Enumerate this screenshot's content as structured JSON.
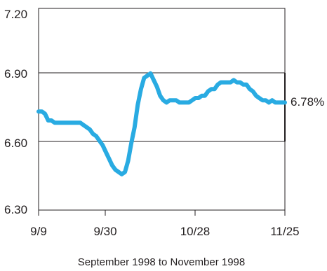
{
  "chart_data": {
    "type": "line",
    "title": "",
    "xlabel": "September 1998 to November 1998",
    "ylabel": "",
    "ylim": [
      6.3,
      7.2
    ],
    "y_ticks": [
      "7.20",
      "6.90",
      "6.60",
      "6.30"
    ],
    "y_tick_values": [
      7.2,
      6.9,
      6.6,
      6.3
    ],
    "x_ticks": [
      "9/9",
      "9/30",
      "10/28",
      "11/25"
    ],
    "x_tick_days": [
      0,
      21,
      49,
      77
    ],
    "grid": "horizontal lines at 6.60 and 6.90",
    "end_value_label": "6.78%",
    "line_color": "#29abe2",
    "series": [
      {
        "x_days": [
          0,
          1,
          2,
          3,
          4,
          5,
          6,
          7,
          8,
          9,
          10,
          11,
          12,
          13,
          14,
          15,
          16,
          17,
          18,
          19,
          20,
          21,
          22,
          23,
          24,
          25,
          26,
          27,
          28,
          29,
          30,
          31,
          32,
          33,
          34,
          35,
          36,
          37,
          38,
          39,
          40,
          41,
          42,
          43,
          44,
          45,
          46,
          47,
          48,
          49,
          50,
          51,
          52,
          53,
          54,
          55,
          56,
          57,
          58,
          59,
          60,
          61,
          62,
          63,
          64,
          65,
          66,
          67,
          68,
          69,
          70,
          71,
          72,
          73,
          74,
          75,
          76,
          77
        ],
        "values": [
          6.74,
          6.74,
          6.73,
          6.7,
          6.7,
          6.69,
          6.69,
          6.69,
          6.69,
          6.69,
          6.69,
          6.69,
          6.69,
          6.69,
          6.68,
          6.67,
          6.66,
          6.64,
          6.63,
          6.61,
          6.59,
          6.56,
          6.53,
          6.5,
          6.48,
          6.47,
          6.46,
          6.47,
          6.52,
          6.6,
          6.67,
          6.77,
          6.84,
          6.89,
          6.9,
          6.91,
          6.88,
          6.85,
          6.81,
          6.79,
          6.78,
          6.79,
          6.79,
          6.79,
          6.78,
          6.78,
          6.78,
          6.78,
          6.79,
          6.8,
          6.8,
          6.81,
          6.81,
          6.83,
          6.84,
          6.84,
          6.86,
          6.87,
          6.87,
          6.87,
          6.87,
          6.88,
          6.87,
          6.87,
          6.86,
          6.86,
          6.84,
          6.83,
          6.81,
          6.8,
          6.79,
          6.79,
          6.78,
          6.79,
          6.78,
          6.78,
          6.78,
          6.78
        ]
      }
    ]
  }
}
